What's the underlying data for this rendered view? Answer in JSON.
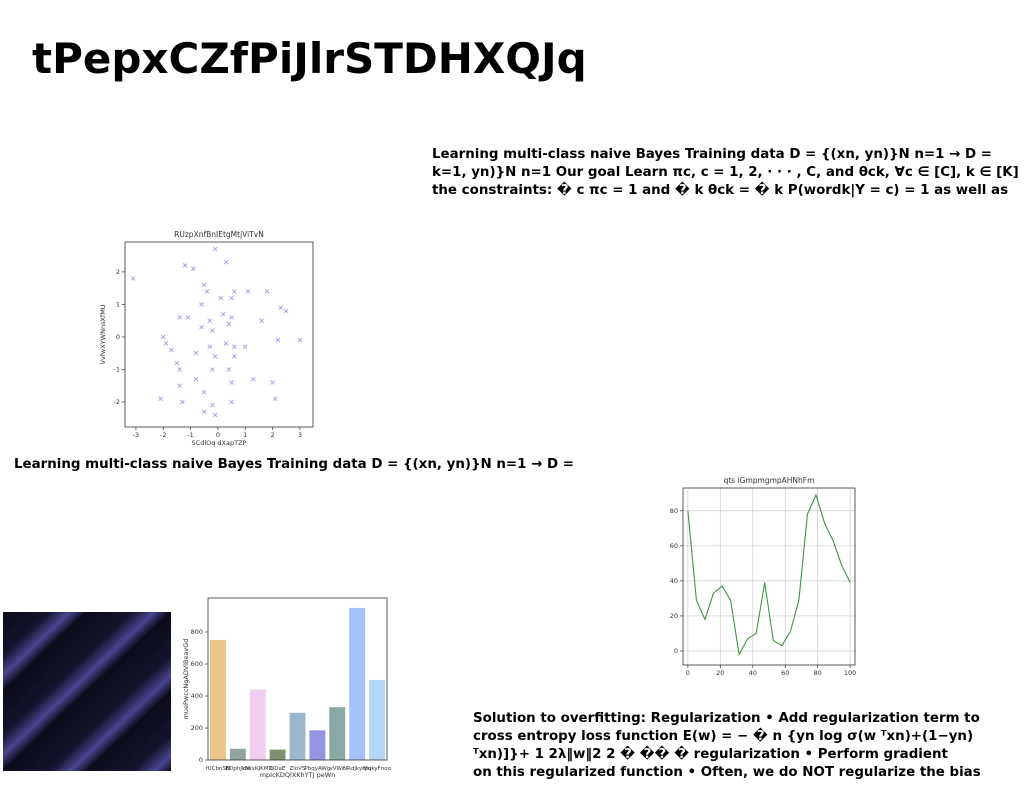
{
  "title": "tPepxCZfPiJlrSTDHXQJq",
  "blocks": [
    {
      "lines": [
        "Learning multi-class naive Bayes Training data D = {(xn, yn)}N n=1 → D =",
        "k=1, yn)}N n=1 Our goal Learn πc, c = 1, 2, · · · , C, and θck, ∀c ∈ [C], k ∈ [K]",
        "the constraints: � c πc = 1 and � k θck = � k P(wordk|Y = c) = 1 as well as"
      ]
    },
    {
      "lines": [
        "Learning multi-class naive Bayes Training data D = {(xn, yn)}N n=1 → D ="
      ]
    },
    {
      "lines": [
        "Solution to overfitting: Regularization • Add regularization term to",
        "cross entropy loss function E(w) = − � n {yn log σ(w ᵀxn)+(1−yn)",
        "ᵀxn)]}+ 1 2λ‖w‖2 2 � �� � regularization • Perform gradient",
        "on this regularized function • Often, we do NOT regularize the bias"
      ]
    }
  ],
  "chart_data": [
    {
      "type": "scatter",
      "title": "RUzpXnfBnIEtgMtjViTvN",
      "x_label": "SCdlOq dXapTZP",
      "y_label": "VvfwXYWNnsXfMU",
      "color": "#9a9af0",
      "x": [
        -3.1,
        -1.2,
        -0.9,
        -0.1,
        0.3,
        -0.5,
        -0.4,
        0.1,
        0.5,
        0.6,
        1.1,
        1.8,
        2.3,
        2.5,
        -1.4,
        -1.1,
        -0.6,
        -0.3,
        0.2,
        0.5,
        1.6,
        -2.0,
        -1.9,
        -0.6,
        -0.2,
        0.4,
        -0.3,
        0.3,
        0.6,
        1.0,
        2.2,
        3.0,
        -1.5,
        -1.7,
        -0.8,
        -0.1,
        0.6,
        -1.4,
        -0.8,
        -0.2,
        0.4,
        1.3,
        2.0,
        -1.4,
        -0.5,
        0.5,
        -2.1,
        -1.3,
        -0.2,
        0.5,
        2.1,
        -0.1,
        -0.5
      ],
      "values": [
        1.8,
        2.2,
        2.1,
        2.7,
        2.3,
        1.6,
        1.4,
        1.2,
        1.2,
        1.4,
        1.4,
        1.4,
        0.9,
        0.8,
        0.6,
        0.6,
        1.0,
        0.5,
        0.7,
        0.6,
        0.5,
        0.0,
        -0.2,
        0.3,
        0.2,
        0.4,
        -0.3,
        -0.2,
        -0.3,
        -0.3,
        -0.1,
        -0.1,
        -0.8,
        -0.4,
        -0.5,
        -0.6,
        -0.6,
        -1.0,
        -1.3,
        -1.0,
        -1.0,
        -1.3,
        -1.4,
        -1.5,
        -1.7,
        -1.4,
        -1.9,
        -2.0,
        -2.1,
        -2.0,
        -1.9,
        -2.4,
        -2.3
      ],
      "xlim": [
        -3.4,
        3.48
      ],
      "ylim": [
        -2.77,
        2.92
      ],
      "xticks": [
        -3,
        -2,
        -1,
        0,
        1,
        2,
        3
      ],
      "yticks": [
        -2,
        -1,
        0,
        1,
        2
      ],
      "grid": false
    },
    {
      "type": "line",
      "title": "qts iGmpmgmpAHNhFm",
      "color": "#3a9a3a",
      "x": [
        0,
        5.26,
        10.53,
        15.79,
        21.05,
        26.32,
        31.58,
        36.84,
        42.11,
        47.37,
        52.63,
        57.89,
        63.16,
        68.42,
        73.68,
        78.95,
        84.21,
        89.47,
        94.74,
        100
      ],
      "values": [
        80,
        29,
        18,
        33,
        37,
        29,
        -2,
        7,
        10,
        39,
        6,
        3,
        11,
        29,
        78,
        89,
        73,
        63,
        49,
        39
      ],
      "xlim": [
        -3,
        103
      ],
      "ylim": [
        -8,
        93
      ],
      "xticks": [
        0,
        20,
        40,
        60,
        80,
        100
      ],
      "yticks": [
        0,
        20,
        40,
        60,
        80
      ],
      "grid": true
    },
    {
      "type": "bar",
      "x_label": "mpIcKDQlXKhYTJ peWn",
      "y_label": "muePwccNgADVlBeavGd",
      "categories": [
        "fUCbnSN",
        "BDphJkIe",
        "dWxKJKMD",
        "QDaE",
        "ZloVS",
        "PbqyAWg",
        "vVWc",
        "NRdjkyrpu",
        "MqkyFnoo"
      ],
      "values": [
        750,
        70,
        440,
        65,
        295,
        185,
        330,
        950,
        500
      ],
      "colors": [
        "#ecc48a",
        "#8fa39f",
        "#f2cdf2",
        "#7f8f6f",
        "#9db8cc",
        "#9494e2",
        "#8ca8a4",
        "#a4c2fa",
        "#b4d6f6"
      ],
      "ylim": [
        0,
        1012
      ],
      "yticks": [
        0,
        200,
        400,
        600,
        800
      ],
      "grid": false
    }
  ]
}
